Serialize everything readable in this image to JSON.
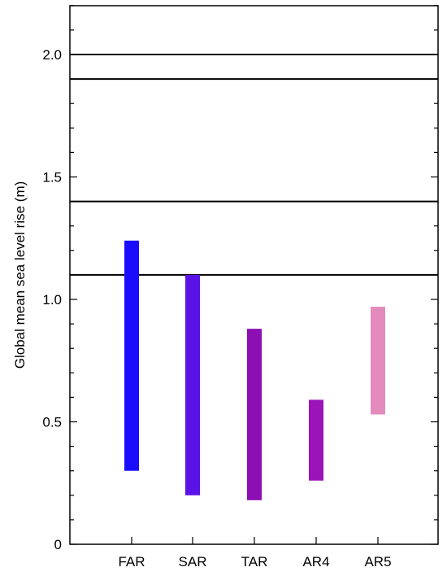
{
  "chart_data": {
    "type": "bar",
    "title": "",
    "xlabel": "",
    "ylabel": "Global mean sea level rise (m)",
    "ylim": [
      0,
      2.2
    ],
    "y_ticks": [
      "0",
      "0.5",
      "1.0",
      "1.5",
      "2.0"
    ],
    "y_tick_values": [
      0,
      0.5,
      1.0,
      1.5,
      2.0
    ],
    "categories": [
      "FAR",
      "SAR",
      "TAR",
      "AR4",
      "AR5"
    ],
    "ranges": [
      {
        "low": 0.3,
        "high": 1.24,
        "color": "#1a0dff"
      },
      {
        "low": 0.2,
        "high": 1.1,
        "color": "#5a12e6"
      },
      {
        "low": 0.18,
        "high": 0.88,
        "color": "#8c0fb4"
      },
      {
        "low": 0.26,
        "high": 0.59,
        "color": "#9a14b8"
      },
      {
        "low": 0.53,
        "high": 0.97,
        "color": "#e38bbd"
      }
    ],
    "reference_lines": [
      2.0,
      1.9,
      1.4,
      1.1
    ],
    "grid": false,
    "legend": "none"
  }
}
